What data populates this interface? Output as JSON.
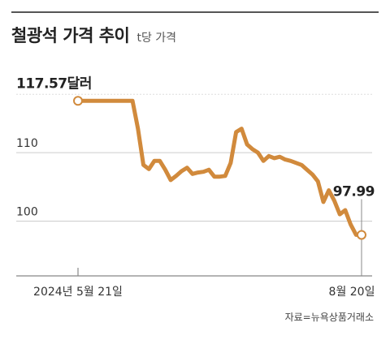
{
  "header": {
    "title": "철광석 가격 추이",
    "subtitle": "t당 가격"
  },
  "source": "자료=뉴욕상품거래소",
  "colors": {
    "line": "#d18a3c",
    "grid": "#cccccc",
    "axis": "#888888"
  },
  "chart_data": {
    "type": "line",
    "title": "철광석 가격 추이",
    "subtitle": "t당 가격",
    "unit": "달러",
    "ylim": [
      92,
      124
    ],
    "yticks": [
      100,
      110
    ],
    "ytick_labels": [
      "100",
      "110"
    ],
    "xtick_labels": [
      "2024년 5월 21일",
      "8월 20일"
    ],
    "start_label": "117.57달러",
    "end_label": "97.99",
    "grid": true,
    "series": [
      {
        "values": [
          117.57,
          117.57,
          117.57,
          117.57,
          117.57,
          117.57,
          117.57,
          117.57,
          117.57,
          117.57,
          117.57,
          113.5,
          108.2,
          107.6,
          108.8,
          108.8,
          107.5,
          106.0,
          106.6,
          107.3,
          107.8,
          106.9,
          107.1,
          107.2,
          107.5,
          106.5,
          106.5,
          106.6,
          108.5,
          113.0,
          113.5,
          111.2,
          110.5,
          110.0,
          108.8,
          109.5,
          109.2,
          109.4,
          109.0,
          108.8,
          108.5,
          108.2,
          107.5,
          106.8,
          105.8,
          102.8,
          104.5,
          103.0,
          101.0,
          101.6,
          99.5,
          98.0,
          97.99
        ]
      }
    ]
  }
}
